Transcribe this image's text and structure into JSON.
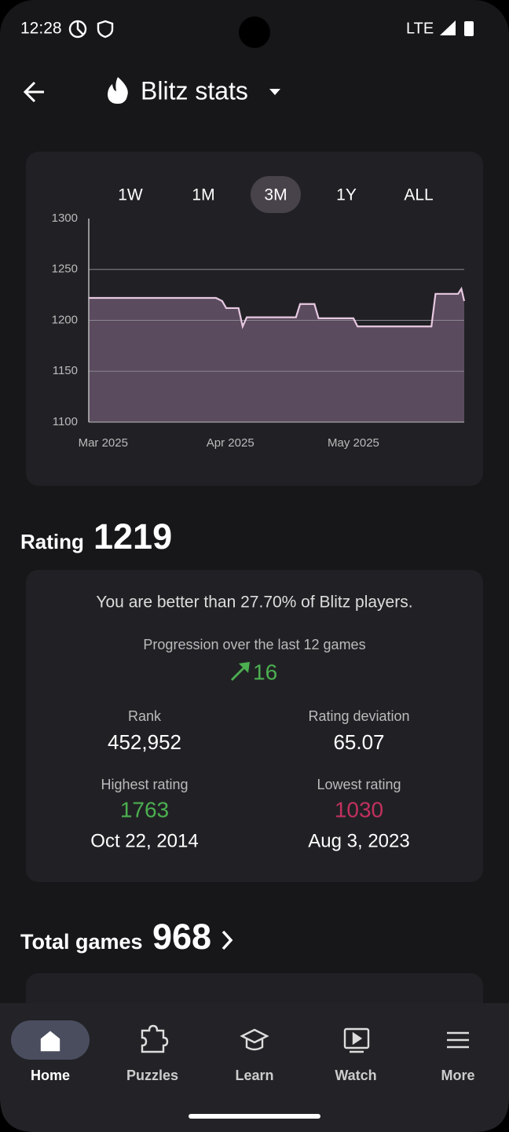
{
  "status_bar": {
    "time": "12:28",
    "network": "LTE"
  },
  "header": {
    "title": "Blitz stats"
  },
  "range_selector": {
    "options": [
      "1W",
      "1M",
      "3M",
      "1Y",
      "ALL"
    ],
    "selected": "3M"
  },
  "chart_data": {
    "type": "line",
    "x": [
      -3.5,
      27.5,
      29,
      30,
      33,
      34,
      35,
      47,
      48,
      51.5,
      52.5,
      61,
      62,
      80,
      81,
      86.5,
      87.3,
      88
    ],
    "values": [
      1222,
      1222,
      1219,
      1212,
      1212,
      1194,
      1203,
      1203,
      1216,
      1216,
      1202,
      1202,
      1194,
      1194,
      1226,
      1226,
      1231,
      1219
    ],
    "xlim": [
      -3.5,
      88
    ],
    "xticks": [
      {
        "value": 0,
        "label": "Mar 2025"
      },
      {
        "value": 31,
        "label": "Apr 2025"
      },
      {
        "value": 61,
        "label": "May 2025"
      }
    ],
    "ylim": [
      1100,
      1300
    ],
    "yticks": [
      1100,
      1150,
      1200,
      1250,
      1300
    ],
    "grid": true,
    "color": "#e8c9e2",
    "fill_color": "#5b4b5e"
  },
  "rating": {
    "label": "Rating",
    "value": 1219,
    "percentile_text": "You are better than 27.70% of Blitz players.",
    "progression_label": "Progression over the last 12 games",
    "progression_value": 16,
    "rank_label": "Rank",
    "rank_value": "452,952",
    "deviation_label": "Rating deviation",
    "deviation_value": 65.07,
    "highest_label": "Highest rating",
    "highest_value": 1763,
    "highest_date": "Oct 22, 2014",
    "lowest_label": "Lowest rating",
    "lowest_value": 1030,
    "lowest_date": "Aug 3, 2023"
  },
  "total_games": {
    "label": "Total games",
    "value": 968
  },
  "nav": {
    "items": [
      {
        "label": "Home",
        "selected": true
      },
      {
        "label": "Puzzles",
        "selected": false
      },
      {
        "label": "Learn",
        "selected": false
      },
      {
        "label": "Watch",
        "selected": false
      },
      {
        "label": "More",
        "selected": false
      }
    ]
  }
}
